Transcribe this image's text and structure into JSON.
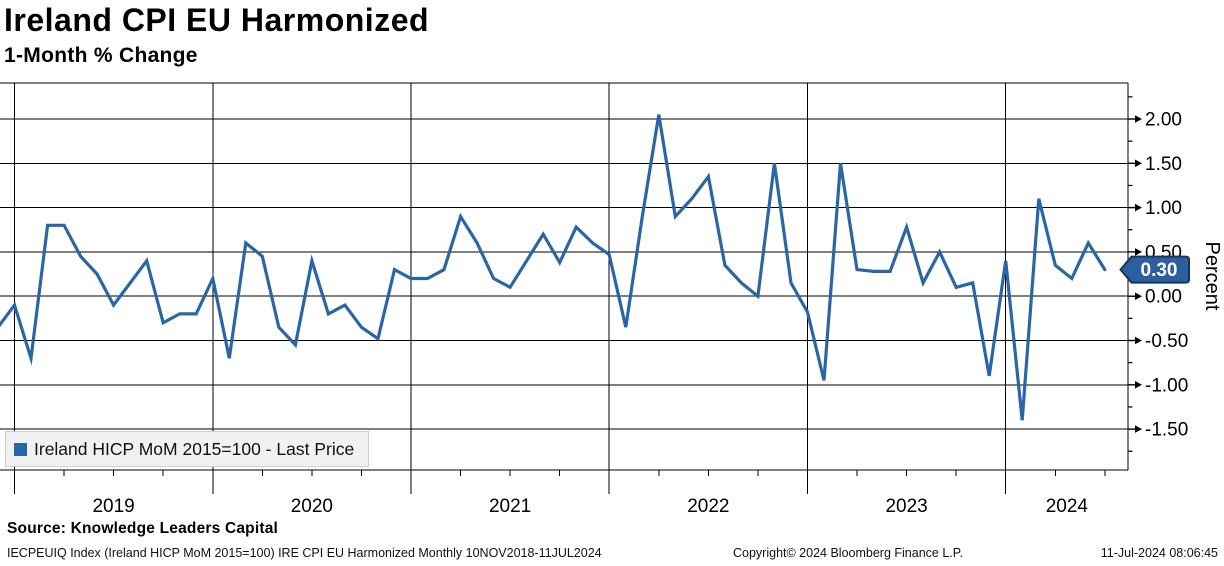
{
  "header": {
    "title": "Ireland CPI EU Harmonized",
    "subtitle": "1-Month % Change"
  },
  "chart_data": {
    "type": "line",
    "title": "Ireland CPI EU Harmonized",
    "subtitle": "1-Month % Change",
    "series_name": "Ireland HICP MoM 2015=100 - Last Price",
    "ylabel": "Percent",
    "ylim": [
      -1.95,
      2.4
    ],
    "grid": true,
    "legend_position": "bottom-left",
    "line_color": "#2a66a5",
    "badge_color": "#2d5f9f",
    "badge_border_color": "#16365c",
    "last_price": "0.30",
    "yticks": [
      2.0,
      1.5,
      1.0,
      0.5,
      0.0,
      -0.5,
      -1.0,
      -1.5
    ],
    "ytick_labels": [
      "2.00",
      "1.50",
      "1.00",
      "0.50",
      "0.00",
      "-0.50",
      "-1.00",
      "-1.50"
    ],
    "xtick_labels": [
      "2019",
      "2020",
      "2021",
      "2022",
      "2023",
      "2024"
    ],
    "x": [
      "2018-11",
      "2018-12",
      "2019-01",
      "2019-02",
      "2019-03",
      "2019-04",
      "2019-05",
      "2019-06",
      "2019-07",
      "2019-08",
      "2019-09",
      "2019-10",
      "2019-11",
      "2019-12",
      "2020-01",
      "2020-02",
      "2020-03",
      "2020-04",
      "2020-05",
      "2020-06",
      "2020-07",
      "2020-08",
      "2020-09",
      "2020-10",
      "2020-11",
      "2020-12",
      "2021-01",
      "2021-02",
      "2021-03",
      "2021-04",
      "2021-05",
      "2021-06",
      "2021-07",
      "2021-08",
      "2021-09",
      "2021-10",
      "2021-11",
      "2021-12",
      "2022-01",
      "2022-02",
      "2022-03",
      "2022-04",
      "2022-05",
      "2022-06",
      "2022-07",
      "2022-08",
      "2022-09",
      "2022-10",
      "2022-11",
      "2022-12",
      "2023-01",
      "2023-02",
      "2023-03",
      "2023-04",
      "2023-05",
      "2023-06",
      "2023-07",
      "2023-08",
      "2023-09",
      "2023-10",
      "2023-11",
      "2023-12",
      "2024-01",
      "2024-02",
      "2024-03",
      "2024-04",
      "2024-05",
      "2024-06"
    ],
    "values": [
      -0.35,
      -0.1,
      -0.7,
      0.8,
      0.8,
      0.45,
      0.25,
      -0.1,
      0.15,
      0.4,
      -0.3,
      -0.2,
      -0.2,
      0.2,
      -0.7,
      0.6,
      0.45,
      -0.35,
      -0.55,
      0.4,
      -0.2,
      -0.1,
      -0.35,
      -0.48,
      0.3,
      0.2,
      0.2,
      0.3,
      0.9,
      0.6,
      0.2,
      0.1,
      0.4,
      0.7,
      0.38,
      0.78,
      0.6,
      0.47,
      -0.35,
      0.9,
      2.05,
      0.9,
      1.1,
      1.35,
      0.35,
      0.15,
      0.0,
      1.5,
      0.15,
      -0.18,
      -0.95,
      1.5,
      0.3,
      0.28,
      0.28,
      0.78,
      0.15,
      0.5,
      0.1,
      0.15,
      -0.9,
      0.4,
      -1.4,
      1.1,
      0.35,
      0.2,
      0.6,
      0.3
    ]
  },
  "legend": {
    "label": "Ireland HICP MoM 2015=100 - Last Price"
  },
  "source": {
    "label": "Source: Knowledge Leaders Capital"
  },
  "footer": {
    "left": "IECPEUIQ Index (Ireland HICP MoM 2015=100) IRE CPI EU Harmonized  Monthly 10NOV2018-11JUL2024",
    "center": "Copyright© 2024 Bloomberg Finance L.P.",
    "right": "11-Jul-2024 08:06:45"
  }
}
